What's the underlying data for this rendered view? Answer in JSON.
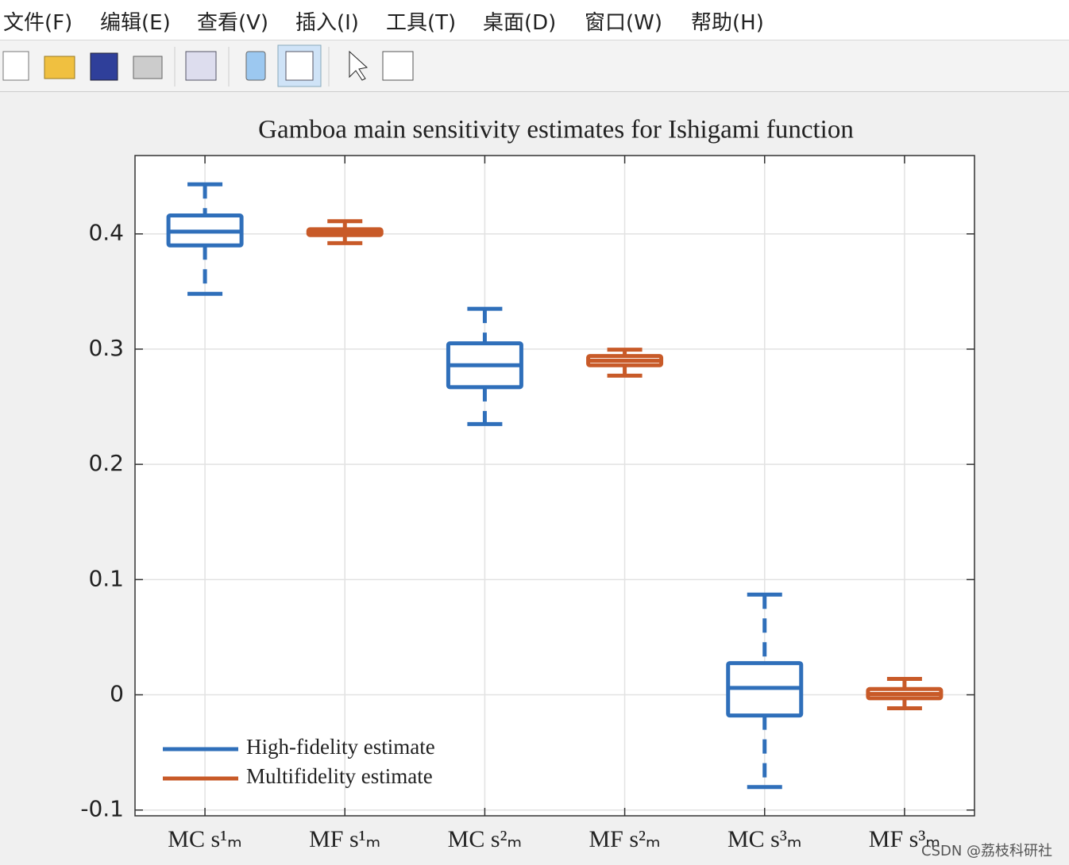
{
  "menu": [
    "文件(F)",
    "编辑(E)",
    "查看(V)",
    "插入(I)",
    "工具(T)",
    "桌面(D)",
    "窗口(W)",
    "帮助(H)"
  ],
  "watermark": "CSDN @荔枝科研社",
  "chart_data": {
    "type": "box",
    "title": "Gamboa main sensitivity estimates for Ishigami function",
    "categories": [
      "MC s¹ₘ",
      "MF s¹ₘ",
      "MC s²ₘ",
      "MF s²ₘ",
      "MC s³ₘ",
      "MF s³ₘ"
    ],
    "ylim": [
      -0.105,
      0.468
    ],
    "yticks": [
      -0.1,
      0,
      0.1,
      0.2,
      0.3,
      0.4
    ],
    "grid": true,
    "legend": "lower left",
    "series": [
      {
        "name": "High-fidelity estimate",
        "color": "#2f6fba",
        "values": [
          {
            "whislo": 0.348,
            "q1": 0.39,
            "med": 0.402,
            "q3": 0.416,
            "whishi": 0.443
          },
          null,
          {
            "whislo": 0.235,
            "q1": 0.267,
            "med": 0.286,
            "q3": 0.305,
            "whishi": 0.335
          },
          null,
          {
            "whislo": -0.08,
            "q1": -0.018,
            "med": 0.006,
            "q3": 0.0275,
            "whishi": 0.087
          },
          null
        ]
      },
      {
        "name": "Multifidelity estimate",
        "color": "#c85a28",
        "values": [
          null,
          {
            "whislo": 0.392,
            "q1": 0.399,
            "med": 0.401,
            "q3": 0.404,
            "whishi": 0.411
          },
          null,
          {
            "whislo": 0.277,
            "q1": 0.286,
            "med": 0.29,
            "q3": 0.294,
            "whishi": 0.2995
          },
          null,
          {
            "whislo": -0.0117,
            "q1": -0.003,
            "med": 0.0007,
            "q3": 0.005,
            "whishi": 0.0138
          }
        ]
      }
    ]
  }
}
